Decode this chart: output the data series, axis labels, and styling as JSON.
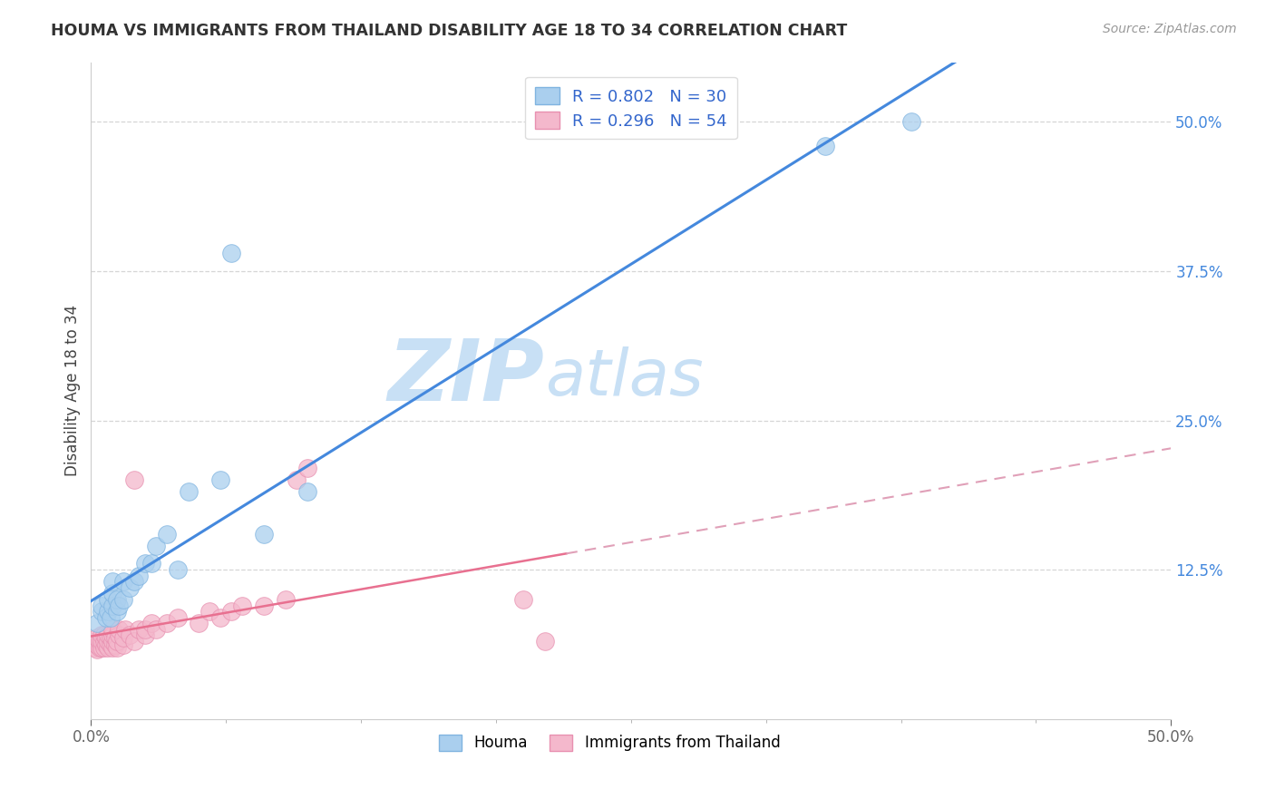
{
  "title": "HOUMA VS IMMIGRANTS FROM THAILAND DISABILITY AGE 18 TO 34 CORRELATION CHART",
  "source_text": "Source: ZipAtlas.com",
  "ylabel": "Disability Age 18 to 34",
  "xlim": [
    0.0,
    0.5
  ],
  "ylim": [
    0.0,
    0.55
  ],
  "right_ytick_labels": [
    "12.5%",
    "25.0%",
    "37.5%",
    "50.0%"
  ],
  "right_ytick_vals": [
    0.125,
    0.25,
    0.375,
    0.5
  ],
  "xtick_edge_labels": [
    "0.0%",
    "50.0%"
  ],
  "xtick_edge_vals": [
    0.0,
    0.5
  ],
  "xtick_minor_vals": [
    0.0625,
    0.125,
    0.1875,
    0.25,
    0.3125,
    0.375,
    0.4375
  ],
  "houma_color": "#aacfee",
  "houma_edge": "#80b4e0",
  "thailand_color": "#f4b8cc",
  "thailand_edge": "#e890b0",
  "line_houma_color": "#4488dd",
  "line_thailand_solid_color": "#e87090",
  "line_thailand_dash_color": "#e0a0b8",
  "legend_houma_R": "R = 0.802",
  "legend_houma_N": "N = 30",
  "legend_thailand_R": "R = 0.296",
  "legend_thailand_N": "N = 54",
  "legend_text_color": "#3366cc",
  "legend_N_color": "#cc2222",
  "watermark_ZIP": "ZIP",
  "watermark_atlas": "atlas",
  "watermark_color": "#c8e0f5",
  "grid_color": "#cccccc",
  "background_color": "#ffffff",
  "right_tick_color": "#4488dd",
  "houma_x": [
    0.003,
    0.005,
    0.005,
    0.007,
    0.008,
    0.008,
    0.009,
    0.01,
    0.01,
    0.01,
    0.012,
    0.012,
    0.013,
    0.015,
    0.015,
    0.018,
    0.02,
    0.022,
    0.025,
    0.028,
    0.03,
    0.035,
    0.04,
    0.045,
    0.06,
    0.065,
    0.08,
    0.1,
    0.34,
    0.38
  ],
  "houma_y": [
    0.08,
    0.09,
    0.095,
    0.085,
    0.09,
    0.1,
    0.085,
    0.095,
    0.105,
    0.115,
    0.09,
    0.1,
    0.095,
    0.1,
    0.115,
    0.11,
    0.115,
    0.12,
    0.13,
    0.13,
    0.145,
    0.155,
    0.125,
    0.19,
    0.2,
    0.39,
    0.155,
    0.19,
    0.48,
    0.5
  ],
  "thailand_x": [
    0.002,
    0.002,
    0.003,
    0.003,
    0.003,
    0.004,
    0.004,
    0.005,
    0.005,
    0.005,
    0.006,
    0.006,
    0.006,
    0.007,
    0.007,
    0.008,
    0.008,
    0.008,
    0.009,
    0.009,
    0.01,
    0.01,
    0.01,
    0.01,
    0.011,
    0.011,
    0.012,
    0.012,
    0.013,
    0.013,
    0.015,
    0.015,
    0.016,
    0.018,
    0.02,
    0.02,
    0.022,
    0.025,
    0.025,
    0.028,
    0.03,
    0.035,
    0.04,
    0.05,
    0.055,
    0.06,
    0.065,
    0.07,
    0.08,
    0.09,
    0.095,
    0.1,
    0.2,
    0.21
  ],
  "thailand_y": [
    0.06,
    0.065,
    0.058,
    0.062,
    0.068,
    0.06,
    0.065,
    0.06,
    0.065,
    0.07,
    0.06,
    0.065,
    0.07,
    0.062,
    0.068,
    0.06,
    0.065,
    0.07,
    0.062,
    0.068,
    0.06,
    0.065,
    0.07,
    0.075,
    0.062,
    0.068,
    0.06,
    0.065,
    0.07,
    0.075,
    0.062,
    0.068,
    0.075,
    0.07,
    0.065,
    0.2,
    0.075,
    0.07,
    0.075,
    0.08,
    0.075,
    0.08,
    0.085,
    0.08,
    0.09,
    0.085,
    0.09,
    0.095,
    0.095,
    0.1,
    0.2,
    0.21,
    0.1,
    0.065
  ]
}
